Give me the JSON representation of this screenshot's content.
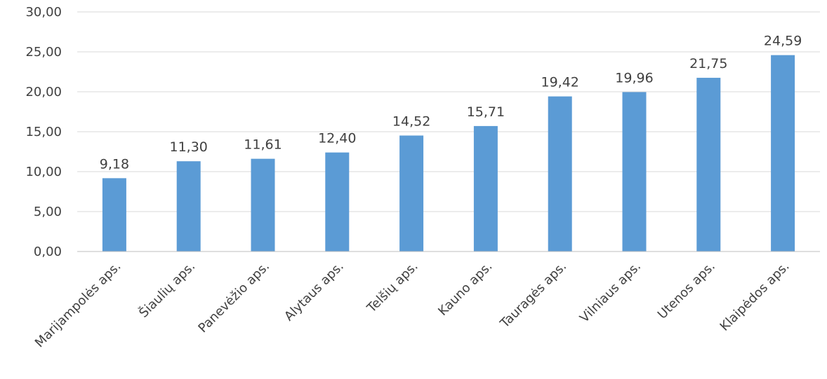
{
  "chart_data": {
    "type": "bar",
    "categories": [
      "Marijampolės aps.",
      "Šiaulių aps.",
      "Panevėžio aps.",
      "Alytaus aps.",
      "Telšių aps.",
      "Kauno aps.",
      "Tauragės aps.",
      "Vilniaus aps.",
      "Utenos aps.",
      "Klaipėdos aps."
    ],
    "values": [
      9.18,
      11.3,
      11.61,
      12.4,
      14.52,
      15.71,
      19.42,
      19.96,
      21.75,
      24.59
    ],
    "data_labels": [
      "9,18",
      "11,30",
      "11,61",
      "12,40",
      "14,52",
      "15,71",
      "19,42",
      "19,96",
      "21,75",
      "24,59"
    ],
    "y_ticks": [
      0,
      5,
      10,
      15,
      20,
      25,
      30
    ],
    "y_tick_labels": [
      "0,00",
      "5,00",
      "10,00",
      "15,00",
      "20,00",
      "25,00",
      "30,00"
    ],
    "ylim": [
      0,
      30
    ],
    "grid": true,
    "legend": "none",
    "bar_color": "#5b9bd5",
    "title": "",
    "xlabel": "",
    "ylabel": ""
  }
}
